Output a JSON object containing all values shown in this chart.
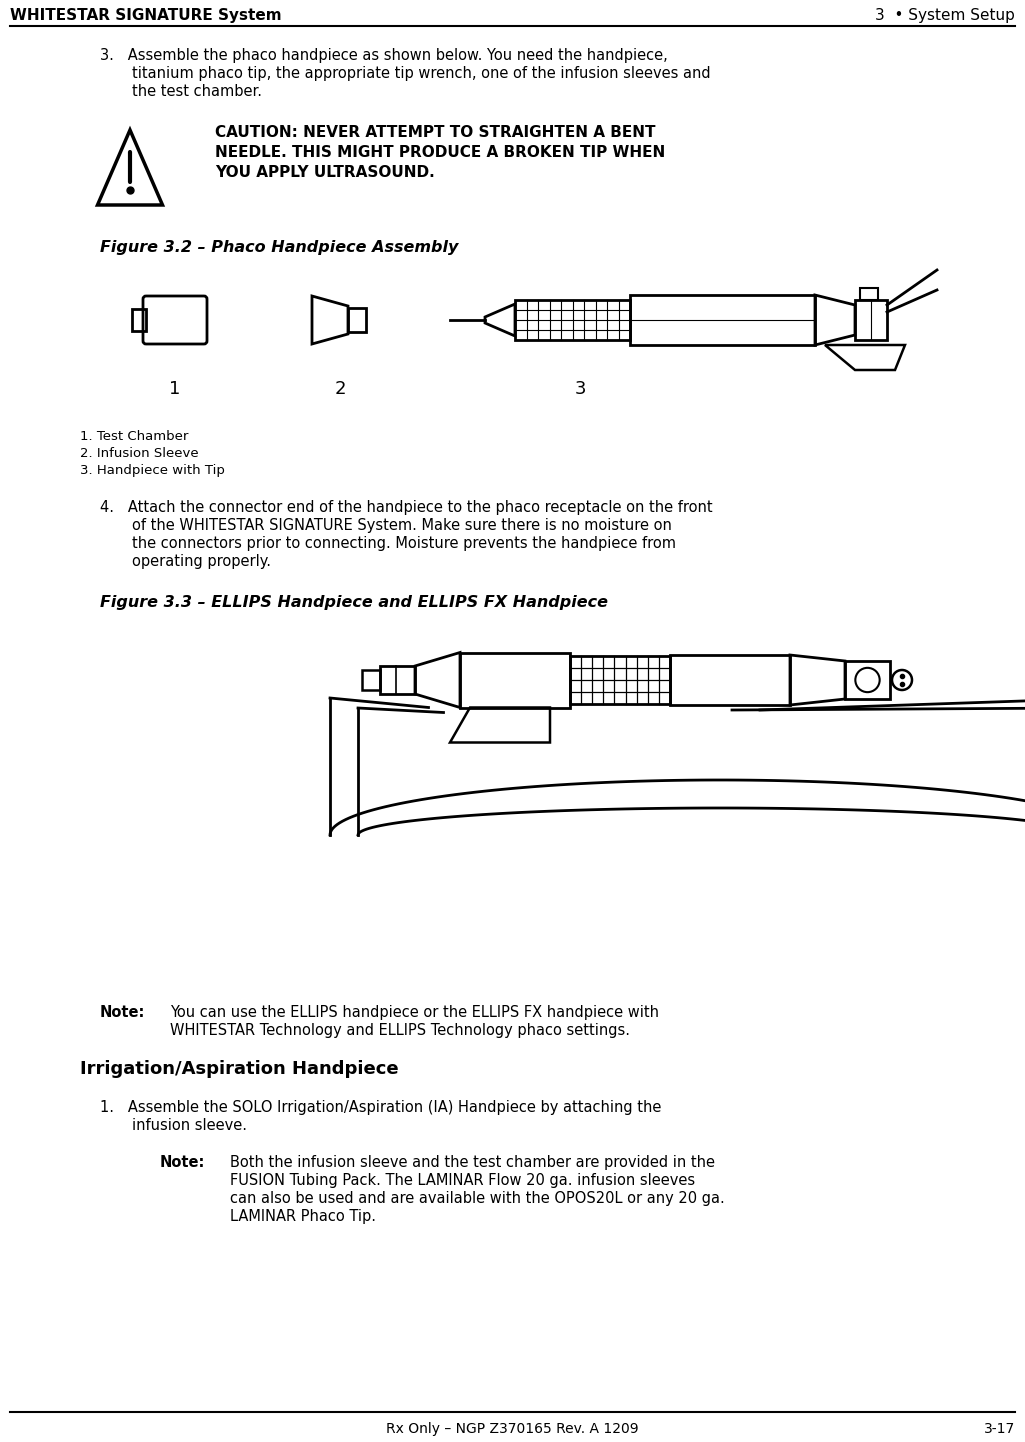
{
  "header_left": "WHITESTAR SIGNATURE System",
  "header_right": "3  • System Setup",
  "footer_center": "Rx Only – NGP Z370165 Rev. A 1209",
  "footer_right": "3-17",
  "bg_color": "#ffffff",
  "text_color": "#000000",
  "fig32_caption": "Figure 3.2 – Phaco Handpiece Assembly",
  "fig32_labels": [
    "1",
    "2",
    "3"
  ],
  "legend_lines": [
    "1. Test Chamber",
    "2. Infusion Sleeve",
    "3. Handpiece with Tip"
  ],
  "fig33_caption": "Figure 3.3 – ELLIPS Handpiece and ELLIPS FX Handpiece",
  "note1_label": "Note:",
  "note1_text": "You can use the ELLIPS handpiece or the ELLIPS FX handpiece with\nWHITESTAR Technology and ELLIPS Technology phaco settings.",
  "ia_heading": "Irrigation/Aspiration Handpiece",
  "note2_label": "Note:",
  "note2_text": "Both the infusion sleeve and the test chamber are provided in the\nFUSION Tubing Pack. The LAMINAR Flow 20 ga. infusion sleeves\ncan also be used and are available with the OPOS20L or any 20 ga.\nLAMINAR Phaco Tip."
}
